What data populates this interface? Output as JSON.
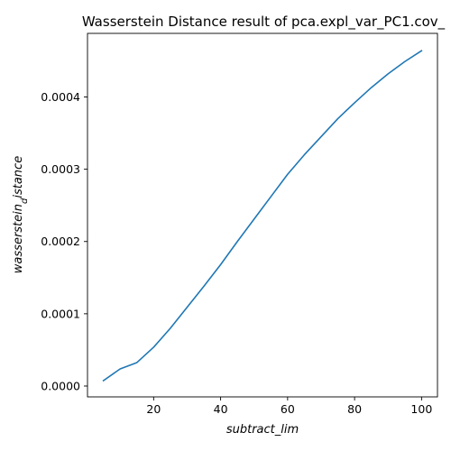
{
  "chart_data": {
    "type": "line",
    "title": "Wasserstein Distance result of pca.expl_var_PC1.cov_",
    "xlabel": "subtract_lim",
    "ylabel": "wasserstein_distance",
    "ylabel_display": {
      "base": "wasserstein",
      "subscript": "d",
      "rest": "istance"
    },
    "xlim": [
      0.25,
      104.75
    ],
    "ylim": [
      -1.5e-05,
      0.000488
    ],
    "x_ticks": [
      20,
      40,
      60,
      80,
      100
    ],
    "x_tick_labels": [
      "20",
      "40",
      "60",
      "80",
      "100"
    ],
    "y_ticks": [
      0.0,
      0.0001,
      0.0002,
      0.0003,
      0.0004
    ],
    "y_tick_labels": [
      "0.0000",
      "0.0001",
      "0.0002",
      "0.0003",
      "0.0004"
    ],
    "grid": false,
    "legend": "none",
    "series": [
      {
        "color": "#1f77b4",
        "x": [
          5,
          10,
          15,
          20,
          25,
          30,
          35,
          40,
          45,
          50,
          55,
          60,
          65,
          70,
          75,
          80,
          85,
          90,
          95,
          100
        ],
        "y": [
          7.5e-06,
          2.37e-05,
          3.25e-05,
          5.37e-05,
          8e-05,
          0.000109,
          0.000138,
          0.000168,
          0.0002,
          0.000231,
          0.000262,
          0.000293,
          0.00032,
          0.000345,
          0.00037,
          0.000392,
          0.000413,
          0.000432,
          0.000449,
          0.000464
        ]
      }
    ]
  }
}
